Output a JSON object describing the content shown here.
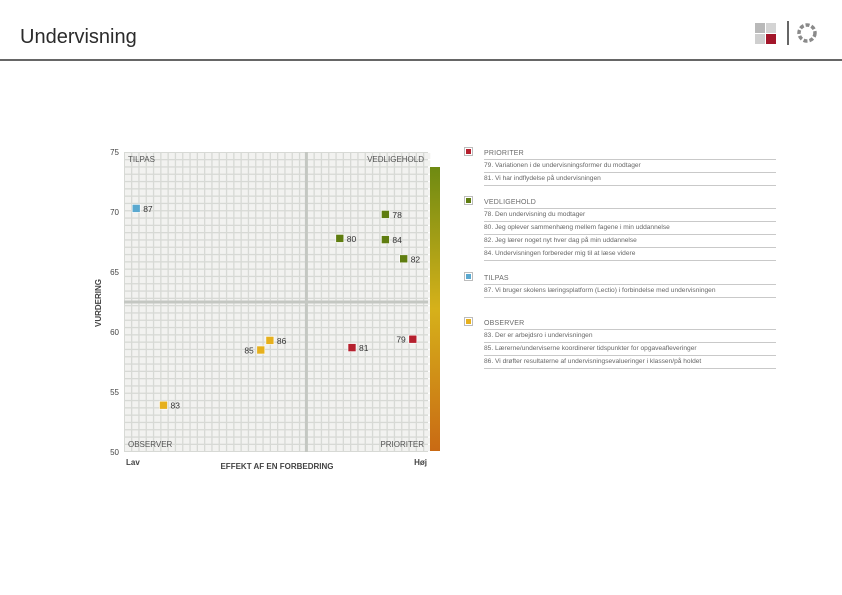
{
  "header": {
    "title": "Undervisning"
  },
  "colors": {
    "prioriter": "#b5202e",
    "vedligehold": "#5f7d10",
    "tilpas": "#5aa8cf",
    "observer": "#e6b01d",
    "grid_bg": "#d7d9d5",
    "grid_cell": "#f2f2f0"
  },
  "chart_data": {
    "type": "scatter",
    "title": "",
    "xlabel": "EFFEKT AF EN FORBEDRING",
    "ylabel": "VURDERING",
    "x_low_label": "Lav",
    "x_high_label": "Høj",
    "ylim": [
      50,
      75
    ],
    "yticks": [
      50,
      55,
      60,
      65,
      70,
      75
    ],
    "xlim": [
      0,
      1
    ],
    "quadrant_split": {
      "x": 0.6,
      "y": 62.5
    },
    "quadrants": {
      "top_left": "TILPAS",
      "top_right": "VEDLIGEHOLD",
      "bottom_left": "OBSERVER",
      "bottom_right": "PRIORITER"
    },
    "points": [
      {
        "label": "87",
        "x": 0.04,
        "y": 70.3,
        "group": "tilpas",
        "label_side": "right"
      },
      {
        "label": "78",
        "x": 0.86,
        "y": 69.8,
        "group": "vedligehold",
        "label_side": "right"
      },
      {
        "label": "80",
        "x": 0.71,
        "y": 67.8,
        "group": "vedligehold",
        "label_side": "right"
      },
      {
        "label": "84",
        "x": 0.86,
        "y": 67.7,
        "group": "vedligehold",
        "label_side": "right"
      },
      {
        "label": "82",
        "x": 0.92,
        "y": 66.1,
        "group": "vedligehold",
        "label_side": "right"
      },
      {
        "label": "86",
        "x": 0.48,
        "y": 59.3,
        "group": "observer",
        "label_side": "right"
      },
      {
        "label": "85",
        "x": 0.45,
        "y": 58.5,
        "group": "observer",
        "label_side": "left"
      },
      {
        "label": "79",
        "x": 0.95,
        "y": 59.4,
        "group": "prioriter",
        "label_side": "left"
      },
      {
        "label": "81",
        "x": 0.75,
        "y": 58.7,
        "group": "prioriter",
        "label_side": "right"
      },
      {
        "label": "83",
        "x": 0.13,
        "y": 53.9,
        "group": "observer",
        "label_side": "right"
      }
    ]
  },
  "legend": [
    {
      "key": "prioriter",
      "heading": "PRIORITER",
      "items": [
        "79. Variationen i de undervisningsformer du modtager",
        "81. Vi har indflydelse på undervisningen"
      ]
    },
    {
      "key": "vedligehold",
      "heading": "VEDLIGEHOLD",
      "items": [
        "78. Den undervisning du modtager",
        "80. Jeg oplever sammenhæng mellem fagene i min uddannelse",
        "82. Jeg lærer noget nyt hver dag på min uddannelse",
        "84. Undervisningen forbereder mig til at læse videre"
      ]
    },
    {
      "key": "tilpas",
      "heading": "TILPAS",
      "items": [
        "87. Vi bruger skolens læringsplatform (Lectio) i forbindelse med undervisningen"
      ]
    },
    {
      "key": "observer",
      "heading": "OBSERVER",
      "items": [
        "83. Der er arbejdsro i undervisningen",
        "85. Lærerne/underviserne koordinerer tidspunkter for opgaveafleveringer",
        "86. Vi drøfter resultaterne af undervisningsevalueringer i klassen/på holdet"
      ]
    }
  ]
}
